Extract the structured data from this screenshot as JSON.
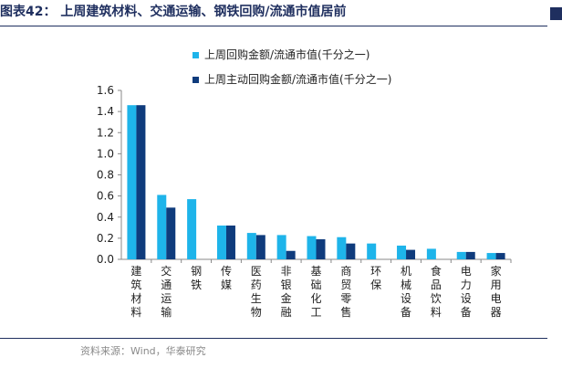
{
  "header": {
    "title": "图表42：  上周建筑材料、交通运输、钢铁回购/流通市值居前"
  },
  "footer": {
    "source": "资料来源：Wind，华泰研究"
  },
  "colors": {
    "series1": "#1eb4ea",
    "series2": "#0f3b7c",
    "title": "#1f2f5f"
  },
  "chart_data": {
    "type": "bar",
    "categories": [
      "建筑材料",
      "交通运输",
      "钢铁",
      "传媒",
      "医药生物",
      "非银金融",
      "基础化工",
      "商贸零售",
      "环保",
      "机械设备",
      "食品饮料",
      "电力设备",
      "家用电器"
    ],
    "series": [
      {
        "name": "上周回购金额/流通市值(千分之一)",
        "values": [
          1.46,
          0.61,
          0.57,
          0.32,
          0.25,
          0.23,
          0.22,
          0.21,
          0.15,
          0.13,
          0.1,
          0.07,
          0.06
        ]
      },
      {
        "name": "上周主动回购金额/流通市值(千分之一)",
        "values": [
          1.46,
          0.49,
          null,
          0.32,
          0.23,
          0.08,
          0.19,
          0.15,
          null,
          0.09,
          null,
          0.07,
          0.06
        ]
      }
    ],
    "ylim": [
      0,
      1.6
    ],
    "yticks": [
      0.0,
      0.2,
      0.4,
      0.6,
      0.8,
      1.0,
      1.2,
      1.4,
      1.6
    ],
    "legend": "top-center",
    "grid": false
  }
}
